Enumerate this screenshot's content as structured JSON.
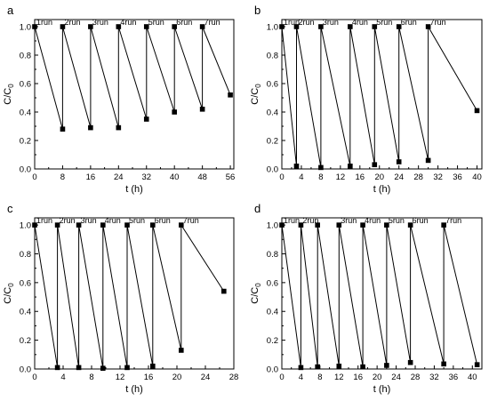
{
  "chart_data": [
    {
      "type": "line",
      "panel_label": "a",
      "xlabel": "t (h)",
      "ylabel": "C/C",
      "ylabel_sub": "0",
      "xlim": [
        0,
        57
      ],
      "ylim": [
        0.0,
        1.05
      ],
      "xticks": [
        0,
        8,
        16,
        24,
        32,
        40,
        48,
        56
      ],
      "yticks": [
        0.0,
        0.2,
        0.4,
        0.6,
        0.8,
        1.0
      ],
      "x": [
        0,
        8,
        8,
        16,
        16,
        24,
        24,
        32,
        32,
        40,
        40,
        48,
        48,
        56
      ],
      "y": [
        1.0,
        0.28,
        1.0,
        0.29,
        1.0,
        0.29,
        1.0,
        0.35,
        1.0,
        0.4,
        1.0,
        0.42,
        1.0,
        0.52
      ],
      "annotations": [
        {
          "text": "1run",
          "x": 0
        },
        {
          "text": "2run",
          "x": 8
        },
        {
          "text": "3run",
          "x": 16
        },
        {
          "text": "4run",
          "x": 24
        },
        {
          "text": "5run",
          "x": 32
        },
        {
          "text": "6run",
          "x": 40
        },
        {
          "text": "7run",
          "x": 48
        }
      ]
    },
    {
      "type": "line",
      "panel_label": "b",
      "xlabel": "t (h)",
      "ylabel": "C/C",
      "ylabel_sub": "0",
      "xlim": [
        0,
        41
      ],
      "ylim": [
        0.0,
        1.05
      ],
      "xticks": [
        0,
        4,
        8,
        12,
        16,
        20,
        24,
        28,
        32,
        36,
        40
      ],
      "yticks": [
        0.0,
        0.2,
        0.4,
        0.6,
        0.8,
        1.0
      ],
      "x": [
        0,
        3,
        3,
        8,
        8,
        14,
        14,
        19,
        19,
        24,
        24,
        30,
        30,
        40
      ],
      "y": [
        1.0,
        0.02,
        1.0,
        0.01,
        1.0,
        0.02,
        1.0,
        0.03,
        1.0,
        0.05,
        1.0,
        0.06,
        1.0,
        0.41
      ],
      "annotations": [
        {
          "text": "1run",
          "x": 0
        },
        {
          "text": "2run",
          "x": 3
        },
        {
          "text": "3run",
          "x": 8
        },
        {
          "text": "4run",
          "x": 14
        },
        {
          "text": "5run",
          "x": 19
        },
        {
          "text": "6run",
          "x": 24
        },
        {
          "text": "7run",
          "x": 30
        }
      ]
    },
    {
      "type": "line",
      "panel_label": "c",
      "xlabel": "t (h)",
      "ylabel": "C/C",
      "ylabel_sub": "0",
      "xlim": [
        0,
        28
      ],
      "ylim": [
        0.0,
        1.05
      ],
      "xticks": [
        0,
        4,
        8,
        12,
        16,
        20,
        24,
        28
      ],
      "yticks": [
        0.0,
        0.2,
        0.4,
        0.6,
        0.8,
        1.0
      ],
      "x": [
        0,
        3.2,
        3.2,
        6.2,
        6.2,
        9.6,
        9.6,
        13,
        13,
        16.6,
        16.6,
        20.6,
        20.6,
        26.6
      ],
      "y": [
        1.0,
        0.01,
        1.0,
        0.01,
        1.0,
        0.005,
        1.0,
        0.01,
        1.0,
        0.02,
        1.0,
        0.13,
        1.0,
        0.54
      ],
      "annotations": [
        {
          "text": "1run",
          "x": 0
        },
        {
          "text": "2run",
          "x": 3.2
        },
        {
          "text": "3run",
          "x": 6.2
        },
        {
          "text": "4run",
          "x": 9.6
        },
        {
          "text": "5run",
          "x": 13
        },
        {
          "text": "6run",
          "x": 16.6
        },
        {
          "text": "7run",
          "x": 20.6
        }
      ]
    },
    {
      "type": "line",
      "panel_label": "d",
      "xlabel": "t (h)",
      "ylabel": "C/C",
      "ylabel_sub": "0",
      "xlim": [
        0,
        42
      ],
      "ylim": [
        0.0,
        1.05
      ],
      "xticks": [
        0,
        4,
        8,
        12,
        16,
        20,
        24,
        28,
        32,
        36,
        40
      ],
      "yticks": [
        0.0,
        0.2,
        0.4,
        0.6,
        0.8,
        1.0
      ],
      "x": [
        0,
        4,
        4,
        7.5,
        7.5,
        12,
        12,
        17,
        17,
        22,
        22,
        27,
        27,
        34,
        34,
        41
      ],
      "y": [
        1.0,
        0.01,
        1.0,
        0.015,
        1.0,
        0.02,
        1.0,
        0.015,
        1.0,
        0.025,
        1.0,
        0.045,
        1.0,
        0.035,
        1.0,
        0.03
      ],
      "annotations": [
        {
          "text": "1run",
          "x": 0
        },
        {
          "text": "2run",
          "x": 4
        },
        {
          "text": "3run",
          "x": 12
        },
        {
          "text": "4run",
          "x": 17
        },
        {
          "text": "5run",
          "x": 22
        },
        {
          "text": "6run",
          "x": 27
        },
        {
          "text": "7run",
          "x": 34
        }
      ]
    }
  ]
}
